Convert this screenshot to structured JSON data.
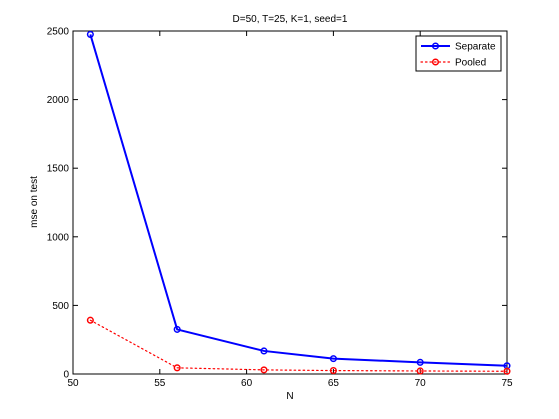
{
  "chart_data": {
    "type": "line",
    "title": "D=50, T=25, K=1, seed=1",
    "xlabel": "N",
    "ylabel": "mse on test",
    "xlim": [
      50,
      75
    ],
    "ylim": [
      0,
      2500
    ],
    "x_ticks": [
      50,
      55,
      60,
      65,
      70,
      75
    ],
    "y_ticks": [
      0,
      500,
      1000,
      1500,
      2000,
      2500
    ],
    "x_tick_labels": [
      "50",
      "55",
      "60",
      "65",
      "70",
      "75"
    ],
    "y_tick_labels": [
      "0",
      "500",
      "1000",
      "1500",
      "2000",
      "2500"
    ],
    "grid": false,
    "legend_position": "top-right",
    "series": [
      {
        "name": "Separate",
        "color": "#0000ff",
        "line_style": "solid",
        "marker": "circle",
        "x": [
          51,
          56,
          61,
          65,
          70,
          75
        ],
        "y": [
          2475,
          325,
          168,
          112,
          85,
          60
        ]
      },
      {
        "name": "Pooled",
        "color": "#ff0000",
        "line_style": "dotted",
        "marker": "circle",
        "x": [
          51,
          56,
          61,
          65,
          70,
          75
        ],
        "y": [
          392,
          45,
          30,
          25,
          22,
          20
        ]
      }
    ]
  }
}
